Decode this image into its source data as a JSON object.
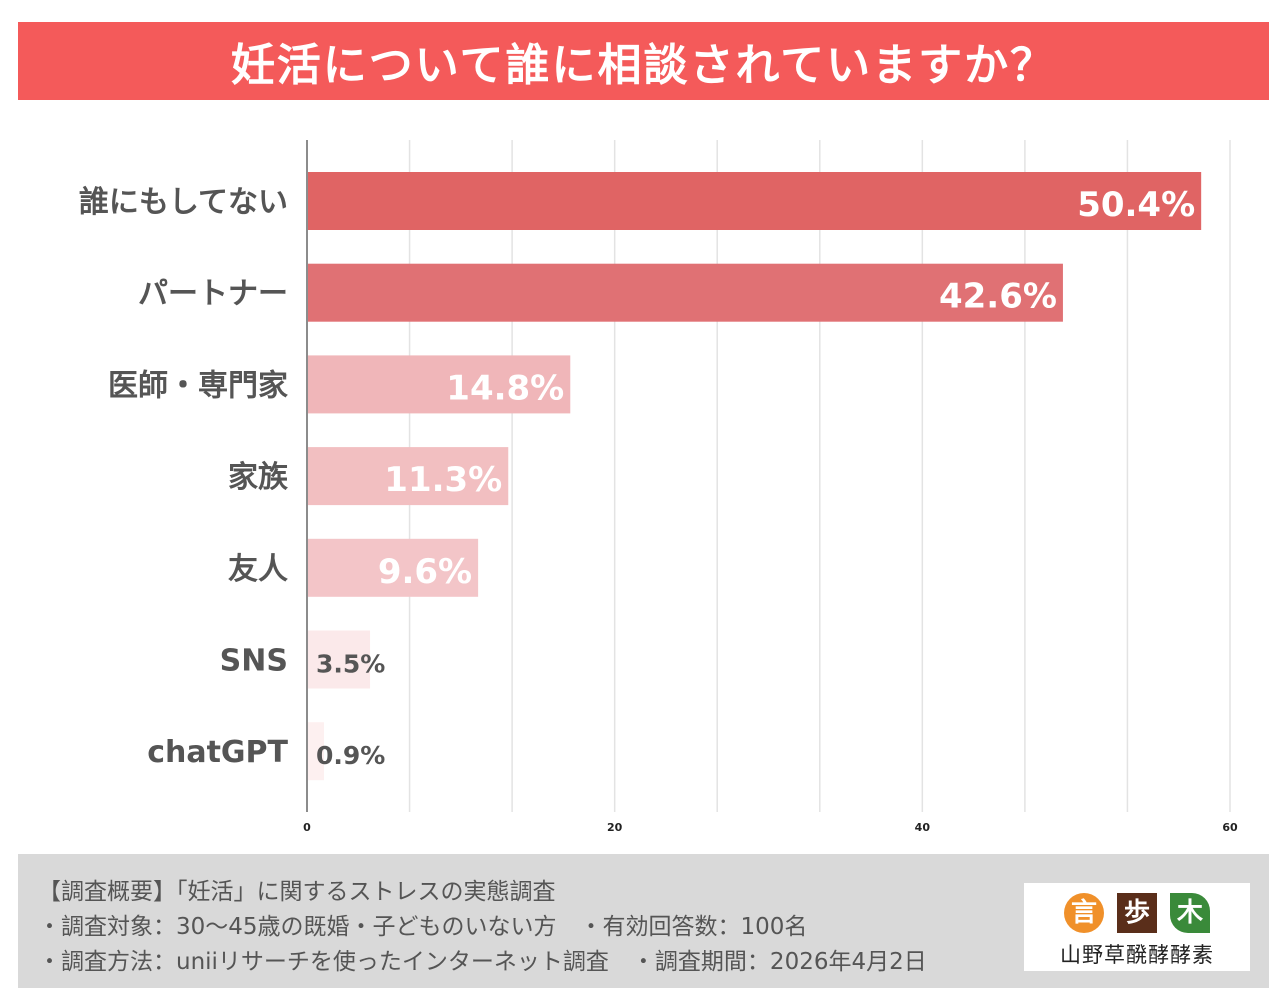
{
  "chart_data": {
    "type": "bar",
    "orientation": "horizontal",
    "title": "妊活について誰に相談されていますか？",
    "categories": [
      "誰にもしてない",
      "パートナー",
      "医師・専門家",
      "家族",
      "友人",
      "SNS",
      "chatGPT"
    ],
    "values": [
      50.4,
      42.6,
      14.8,
      11.3,
      9.6,
      3.5,
      0.9
    ],
    "data_labels": [
      "50.4%",
      "42.6%",
      "14.8%",
      "11.3%",
      "9.6%",
      "3.5%",
      "0.9%"
    ],
    "bar_colors": [
      "#e06464",
      "#e07174",
      "#f0b6b9",
      "#f2bfc1",
      "#f3c5c8",
      "#fbe9ea",
      "#fdf0f0"
    ],
    "xlim": [
      0,
      60
    ],
    "x_ticks": [
      "0",
      "20",
      "40",
      "60"
    ],
    "grid": true,
    "xlabel": "",
    "ylabel": ""
  },
  "title_bar": {
    "color": "#f45a5a"
  },
  "footer": {
    "lines": [
      "【調査概要】「妊活」に関するストレスの実態調査",
      "・調査対象：30〜45歳の既婚・子どものいない方　・有効回答数：100名",
      "・調査方法：uniiリサーチを使ったインターネット調査　・調査期間：2026年4月2日"
    ],
    "logo": {
      "marks": [
        "言",
        "歩",
        "木"
      ],
      "text": "山野草醗酵酵素"
    }
  }
}
